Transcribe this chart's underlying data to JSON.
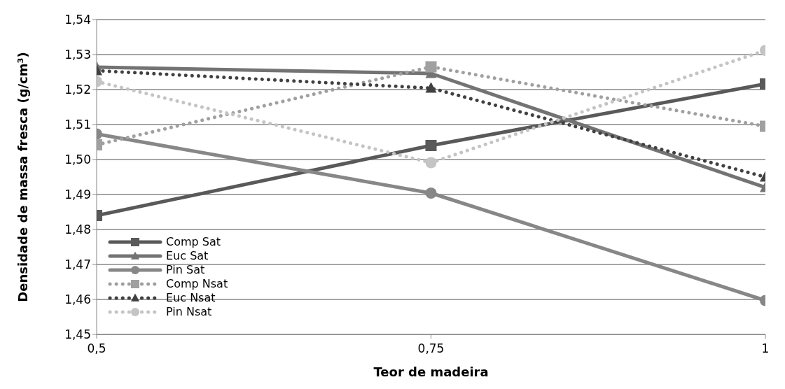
{
  "chart_data": {
    "type": "line",
    "xlabel": "Teor de madeira",
    "ylabel": "Densidade de massa fresca (g/cm³)",
    "x": [
      0.5,
      0.75,
      1
    ],
    "series": [
      {
        "name": "Comp Sat",
        "color": "#595959",
        "marker": "square",
        "line_style": "solid",
        "values": [
          1.484,
          1.504,
          1.5216
        ]
      },
      {
        "name": "Euc Sat",
        "color": "#737373",
        "marker": "triangle",
        "line_style": "solid",
        "values": [
          1.5264,
          1.5246,
          1.492
        ]
      },
      {
        "name": "Pin Sat",
        "color": "#878787",
        "marker": "circle",
        "line_style": "solid",
        "values": [
          1.5073,
          1.4904,
          1.4597
        ]
      },
      {
        "name": "Comp Nsat",
        "color": "#a0a0a0",
        "marker": "square",
        "line_style": "dotted",
        "values": [
          1.5042,
          1.5265,
          1.5095
        ]
      },
      {
        "name": "Euc Nsat",
        "color": "#404040",
        "marker": "triangle",
        "line_style": "dotted",
        "values": [
          1.5254,
          1.5204,
          1.495
        ]
      },
      {
        "name": "Pin Nsat",
        "color": "#c4c4c4",
        "marker": "circle",
        "line_style": "dotted",
        "values": [
          1.5223,
          1.4991,
          1.5312
        ]
      }
    ],
    "xlim": [
      0.5,
      1
    ],
    "xticks": [
      {
        "value": 0.5,
        "label": "0,5"
      },
      {
        "value": 0.75,
        "label": "0,75"
      },
      {
        "value": 1,
        "label": "1"
      }
    ],
    "ylim": [
      1.45,
      1.54
    ],
    "yticks": [
      {
        "value": 1.45,
        "label": "1,45"
      },
      {
        "value": 1.46,
        "label": "1,46"
      },
      {
        "value": 1.47,
        "label": "1,47"
      },
      {
        "value": 1.48,
        "label": "1,48"
      },
      {
        "value": 1.49,
        "label": "1,49"
      },
      {
        "value": 1.5,
        "label": "1,50"
      },
      {
        "value": 1.51,
        "label": "1,51"
      },
      {
        "value": 1.52,
        "label": "1,52"
      },
      {
        "value": 1.53,
        "label": "1,53"
      },
      {
        "value": 1.54,
        "label": "1,54"
      }
    ],
    "grid": "y",
    "legend": "bottom left"
  }
}
